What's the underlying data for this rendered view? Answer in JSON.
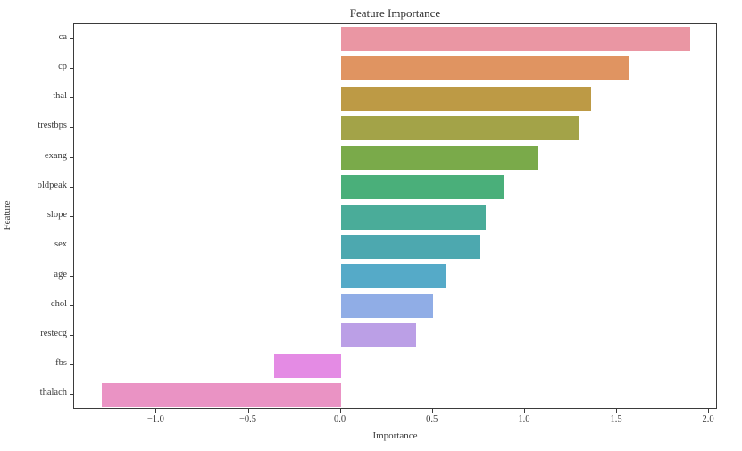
{
  "chart_data": {
    "type": "bar",
    "orientation": "horizontal",
    "title": "Feature Importance",
    "xlabel": "Importance",
    "ylabel": "Feature",
    "categories": [
      "ca",
      "cp",
      "thal",
      "trestbps",
      "exang",
      "oldpeak",
      "slope",
      "sex",
      "age",
      "chol",
      "restecg",
      "fbs",
      "thalach"
    ],
    "values": [
      1.9,
      1.57,
      1.36,
      1.29,
      1.07,
      0.89,
      0.79,
      0.76,
      0.57,
      0.5,
      0.41,
      -0.36,
      -1.3
    ],
    "bar_colors": [
      "#ea96a3",
      "#e09461",
      "#bd9a45",
      "#a3a348",
      "#7aaa4a",
      "#4aaf7a",
      "#4aac99",
      "#4da8af",
      "#55aac8",
      "#90ade6",
      "#bb9fe6",
      "#e48be4",
      "#ea93c4"
    ],
    "xlim": [
      -1.448,
      2.048
    ],
    "xticks": [
      -1.0,
      -0.5,
      0.0,
      0.5,
      1.0,
      1.5,
      2.0
    ],
    "xtick_labels": [
      "−1.0",
      "−0.5",
      "0.0",
      "0.5",
      "1.0",
      "1.5",
      "2.0"
    ],
    "grid": false,
    "legend": null,
    "spines": "box",
    "background": "#ffffff"
  }
}
